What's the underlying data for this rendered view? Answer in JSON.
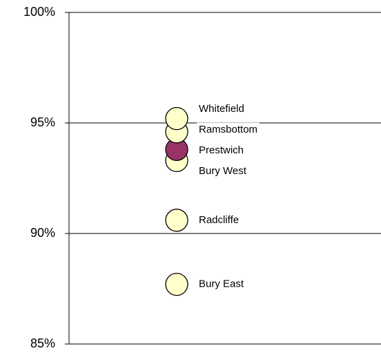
{
  "chart_data": {
    "type": "dot",
    "labels": [
      "Whitefield",
      "Ramsbottom",
      "Prestwich",
      "Bury West",
      "Radcliffe",
      "Bury East"
    ],
    "values": [
      95.2,
      94.6,
      93.8,
      93.3,
      90.6,
      87.7
    ],
    "colors": [
      "#ffffcc",
      "#ffffcc",
      "#993366",
      "#ffffcc",
      "#ffffcc",
      "#ffffcc"
    ],
    "ylim": [
      85,
      100
    ],
    "yticks": [
      {
        "value": 85,
        "label": "85%"
      },
      {
        "value": 90,
        "label": "90%"
      },
      {
        "value": 95,
        "label": "95%"
      },
      {
        "value": 100,
        "label": "100%"
      }
    ],
    "grid": true
  }
}
